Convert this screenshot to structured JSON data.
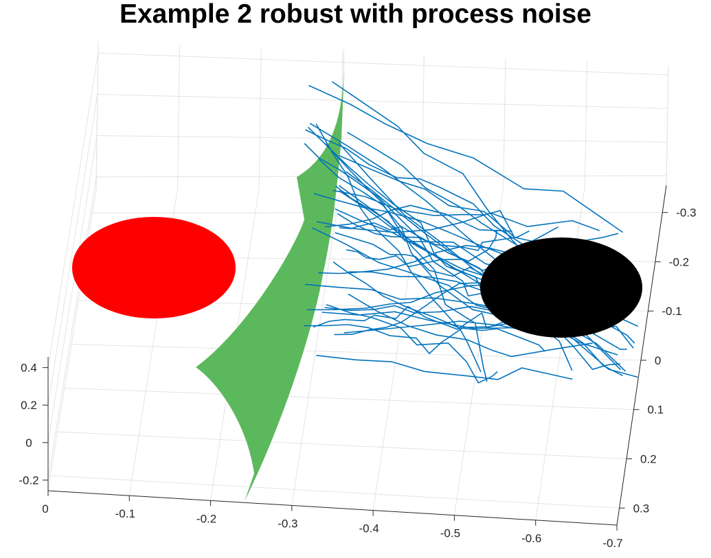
{
  "chart_data": {
    "type": "3d-surface-and-trajectories",
    "title": "Example 2 robust with process noise",
    "xlabel": "",
    "ylabel": "",
    "zlabel": "",
    "x_ticks": [
      "0",
      "-0.1",
      "-0.2",
      "-0.3",
      "-0.4",
      "-0.5",
      "-0.6",
      "-0.7"
    ],
    "y_ticks": [
      "-0.3",
      "-0.2",
      "-0.1",
      "0",
      "0.1",
      "0.2",
      "0.3"
    ],
    "z_ticks": [
      "0.4",
      "0.2",
      "0",
      "-0.2"
    ],
    "xlim": [
      0,
      -0.7
    ],
    "ylim": [
      -0.35,
      0.35
    ],
    "zlim": [
      -0.25,
      0.45
    ],
    "grid": true,
    "objects": [
      {
        "name": "",
        "kind": "disk",
        "color": "#ff0000"
      },
      {
        "name": "",
        "kind": "surface",
        "color": "#5cb85c"
      },
      {
        "name": "",
        "kind": "disk",
        "color": "#000000"
      },
      {
        "name": "",
        "kind": "trajectories",
        "color": "#0072bd",
        "count": 40
      }
    ]
  }
}
